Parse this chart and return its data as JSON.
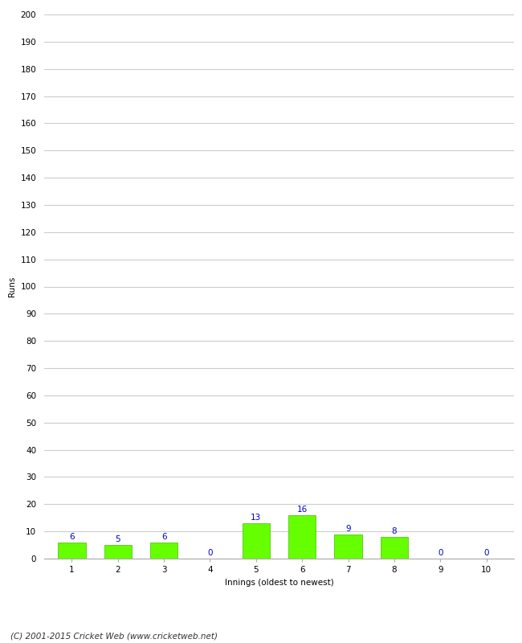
{
  "xlabel": "Innings (oldest to newest)",
  "ylabel": "Runs",
  "categories": [
    1,
    2,
    3,
    4,
    5,
    6,
    7,
    8,
    9,
    10
  ],
  "values": [
    6,
    5,
    6,
    0,
    13,
    16,
    9,
    8,
    0,
    0
  ],
  "bar_color": "#66ff00",
  "bar_edge_color": "#44bb00",
  "label_color": "#0000cc",
  "ylim": [
    0,
    200
  ],
  "yticks": [
    0,
    10,
    20,
    30,
    40,
    50,
    60,
    70,
    80,
    90,
    100,
    110,
    120,
    130,
    140,
    150,
    160,
    170,
    180,
    190,
    200
  ],
  "background_color": "#ffffff",
  "grid_color": "#cccccc",
  "footnote": "(C) 2001-2015 Cricket Web (www.cricketweb.net)",
  "label_fontsize": 7.5,
  "axis_label_fontsize": 7.5,
  "tick_fontsize": 7.5,
  "footnote_fontsize": 7.5
}
